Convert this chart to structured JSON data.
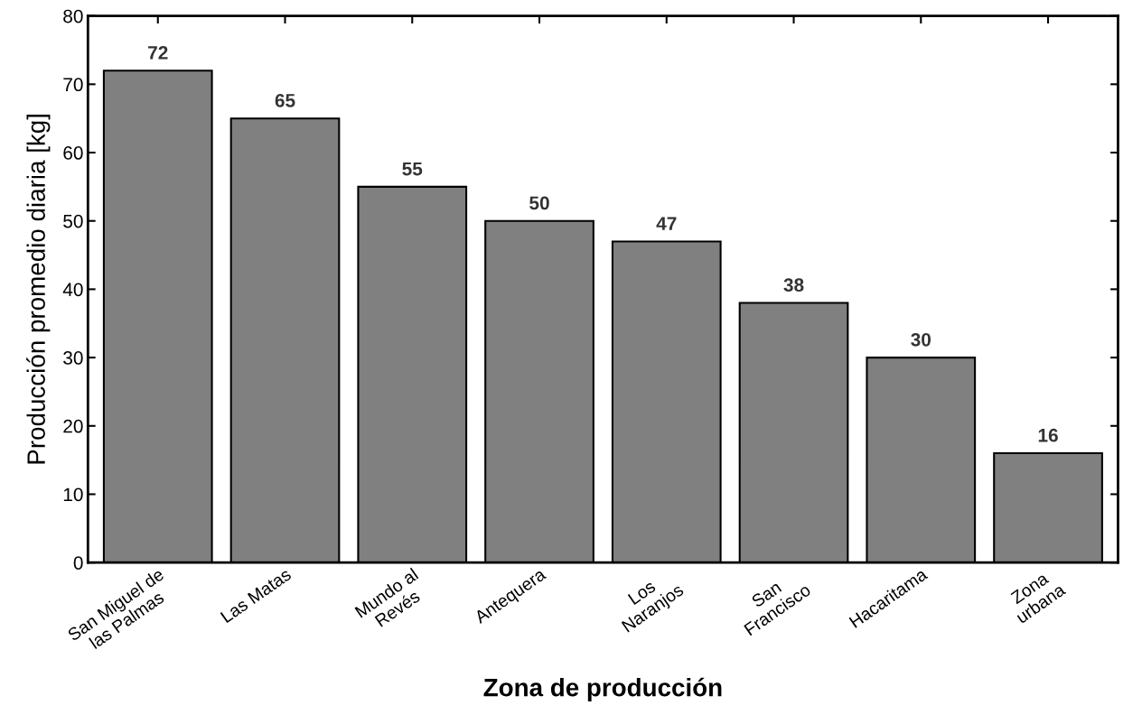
{
  "chart_data": {
    "type": "bar",
    "xlabel": "Zona de producción",
    "ylabel": "Producción promedio diaria [kg]",
    "categories": [
      "San Miguel de\nlas Palmas",
      "Las Matas",
      "Mundo al\nRevés",
      "Antequera",
      "Los\nNaranjos",
      "San\nFrancisco",
      "Hacaritama",
      "Zona\nurbana"
    ],
    "values": [
      72,
      65,
      55,
      50,
      47,
      38,
      30,
      16
    ],
    "color": "#808080",
    "ylim": [
      0,
      80
    ],
    "yticks": [
      0,
      10,
      20,
      30,
      40,
      50,
      60,
      70,
      80
    ],
    "data_labels": true,
    "grid": false,
    "legend": false
  }
}
